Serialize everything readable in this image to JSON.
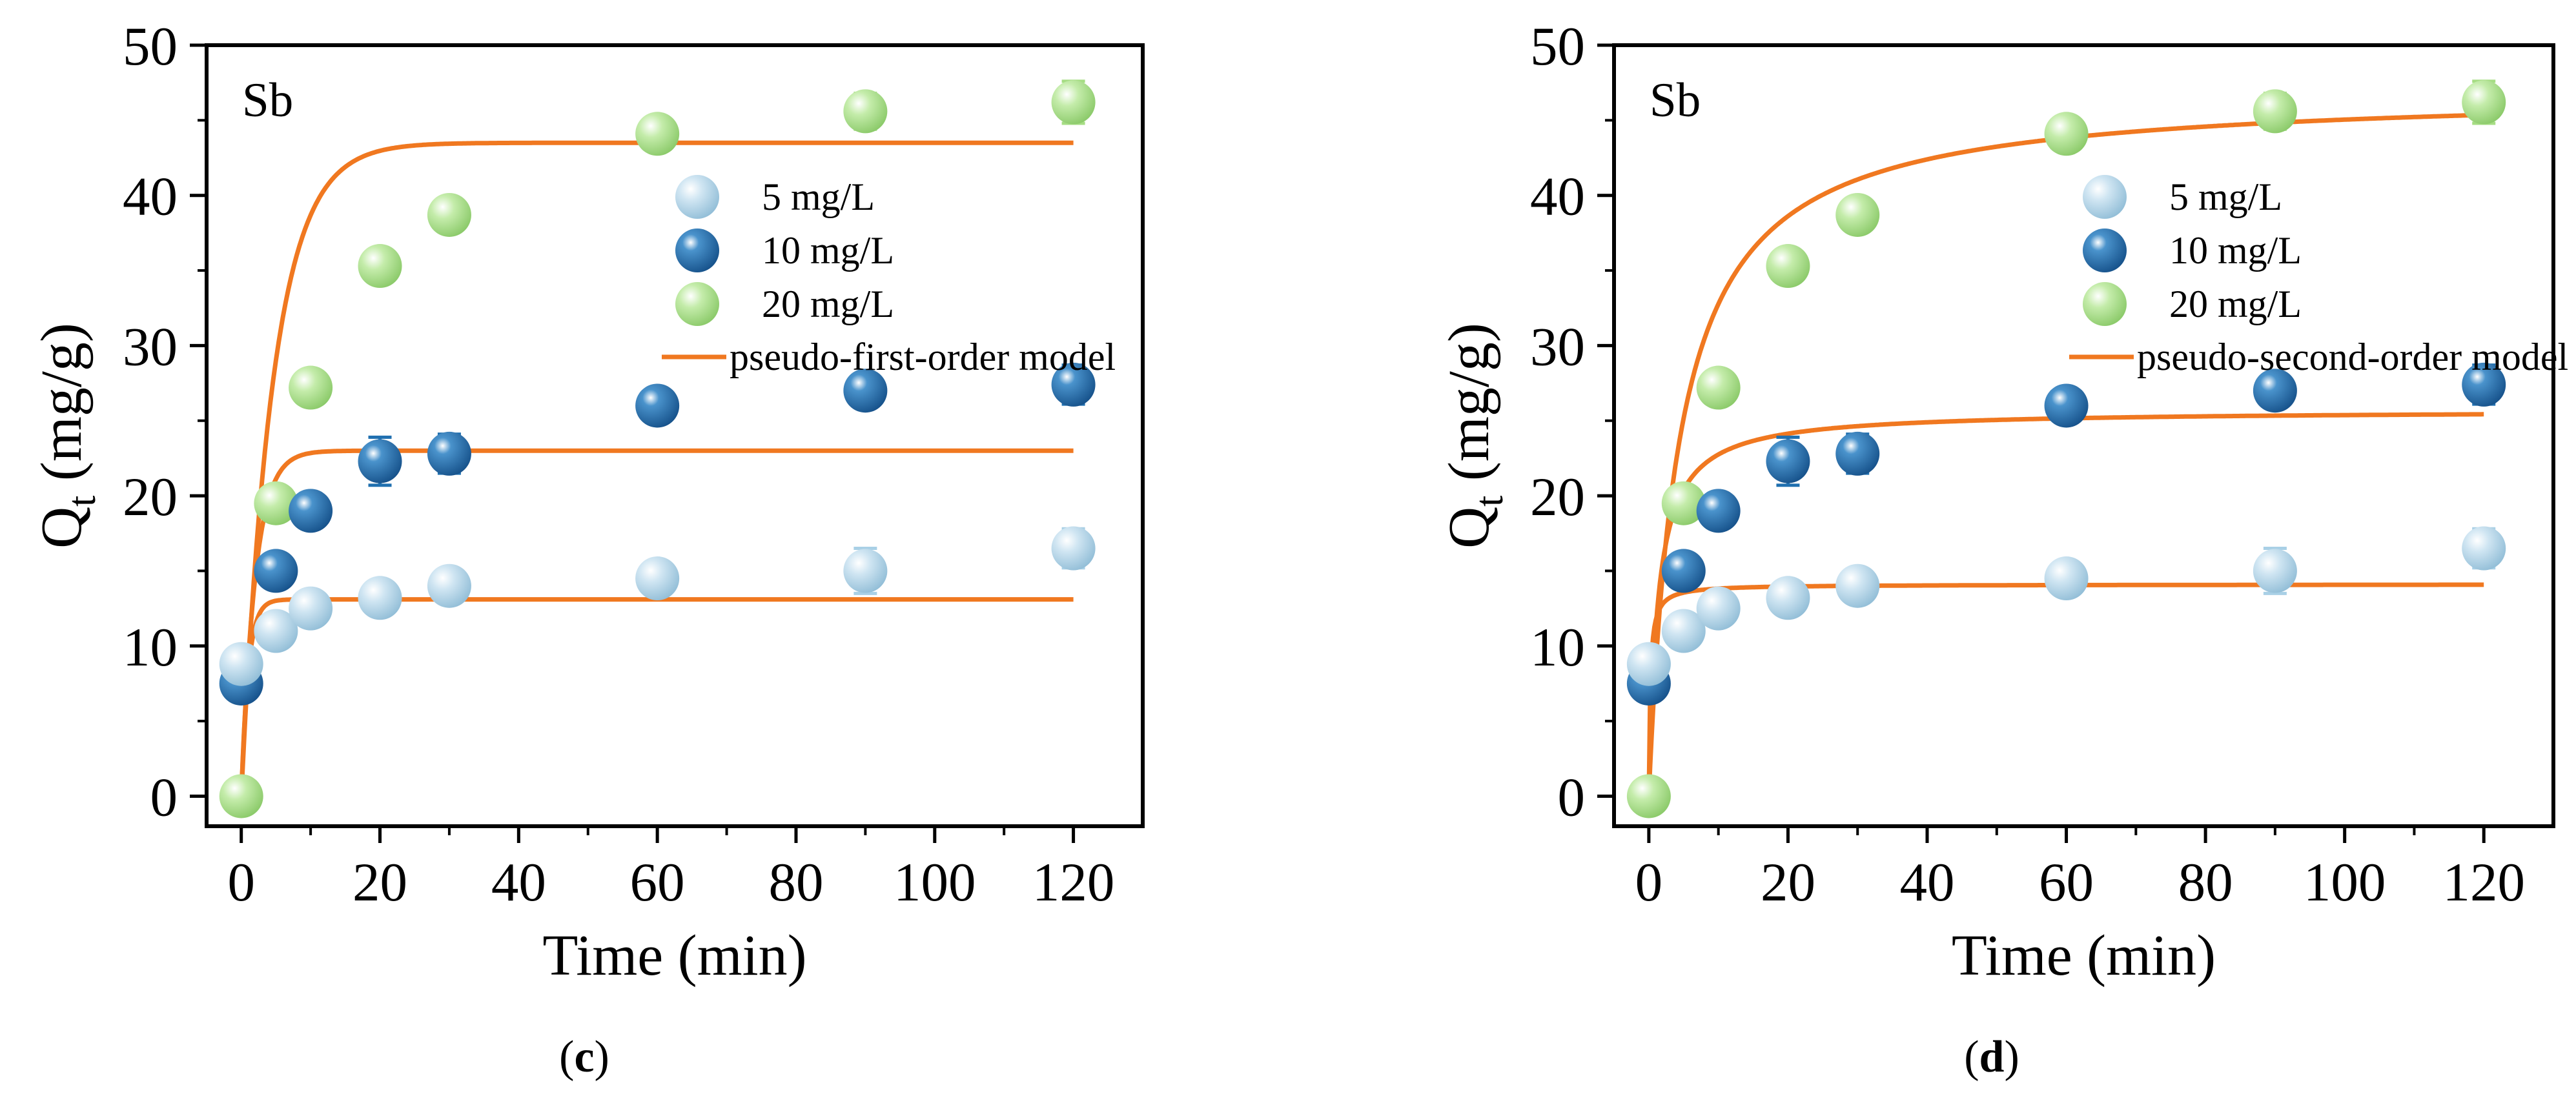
{
  "figure": {
    "panels_count": 2
  },
  "chart_data": [
    {
      "type": "scatter",
      "panel_label": "Sb",
      "caption": {
        "open": "(",
        "letter": "c",
        "close": ")"
      },
      "xlabel": "Time (min)",
      "ylabel": {
        "main": "Q",
        "sub": "t",
        "unit": " (mg/g)"
      },
      "xlim": [
        -5,
        130
      ],
      "ylim": [
        -2,
        50
      ],
      "xticks": [
        0,
        20,
        40,
        60,
        80,
        100,
        120
      ],
      "yticks": [
        0,
        10,
        20,
        30,
        40,
        50
      ],
      "x": [
        0,
        5,
        10,
        20,
        30,
        60,
        90,
        120
      ],
      "series": [
        {
          "name": "5 mg/L",
          "color": "#a9d0e6",
          "values": [
            8.8,
            11.0,
            12.5,
            13.2,
            14.0,
            14.5,
            15.0,
            16.5
          ],
          "errors": [
            0.5,
            0.6,
            0.6,
            0.6,
            0.7,
            0.7,
            1.5,
            1.3
          ]
        },
        {
          "name": "10 mg/L",
          "color": "#2070b0",
          "values": [
            7.5,
            15.0,
            19.0,
            22.3,
            22.8,
            26.0,
            27.0,
            27.4
          ],
          "errors": [
            0.6,
            0.6,
            0.9,
            1.6,
            1.3,
            0.9,
            1.0,
            1.3
          ]
        },
        {
          "name": "20 mg/L",
          "color": "#a6dd84",
          "values": [
            0,
            19.5,
            27.2,
            35.3,
            38.7,
            44.1,
            45.6,
            46.2
          ],
          "errors": [
            0,
            0.6,
            0.7,
            0.8,
            0.8,
            0.8,
            1.2,
            1.4
          ]
        }
      ],
      "model": {
        "name": "pseudo-first-order model",
        "kind": "first",
        "color": "#f07820",
        "params": [
          {
            "qe": 13.1,
            "k": 1.0
          },
          {
            "qe": 23.0,
            "k": 0.5
          },
          {
            "qe": 43.5,
            "k": 0.22
          }
        ]
      }
    },
    {
      "type": "scatter",
      "panel_label": "Sb",
      "caption": {
        "open": "(",
        "letter": "d",
        "close": ")"
      },
      "xlabel": "Time (min)",
      "ylabel": {
        "main": "Q",
        "sub": "t",
        "unit": " (mg/g)"
      },
      "xlim": [
        -5,
        130
      ],
      "ylim": [
        -2,
        50
      ],
      "xticks": [
        0,
        20,
        40,
        60,
        80,
        100,
        120
      ],
      "yticks": [
        0,
        10,
        20,
        30,
        40,
        50
      ],
      "x": [
        0,
        5,
        10,
        20,
        30,
        60,
        90,
        120
      ],
      "series": [
        {
          "name": "5 mg/L",
          "color": "#a9d0e6",
          "values": [
            8.8,
            11.0,
            12.5,
            13.2,
            14.0,
            14.5,
            15.0,
            16.5
          ],
          "errors": [
            0.5,
            0.6,
            0.6,
            0.6,
            0.7,
            0.7,
            1.5,
            1.3
          ]
        },
        {
          "name": "10 mg/L",
          "color": "#2070b0",
          "values": [
            7.5,
            15.0,
            19.0,
            22.3,
            22.8,
            26.0,
            27.0,
            27.4
          ],
          "errors": [
            0.6,
            0.6,
            0.9,
            1.6,
            1.3,
            0.9,
            1.0,
            1.3
          ]
        },
        {
          "name": "20 mg/L",
          "color": "#a6dd84",
          "values": [
            0,
            19.5,
            27.2,
            35.3,
            38.7,
            44.1,
            45.6,
            46.2
          ],
          "errors": [
            0,
            0.6,
            0.7,
            0.8,
            0.8,
            0.8,
            1.2,
            1.4
          ]
        }
      ],
      "model": {
        "name": "pseudo-second-order model",
        "kind": "second",
        "color": "#f07820",
        "params": [
          {
            "qe": 14.1,
            "k": 0.35
          },
          {
            "qe": 25.7,
            "k": 0.03
          },
          {
            "qe": 47.0,
            "k": 0.0049
          }
        ]
      }
    }
  ]
}
